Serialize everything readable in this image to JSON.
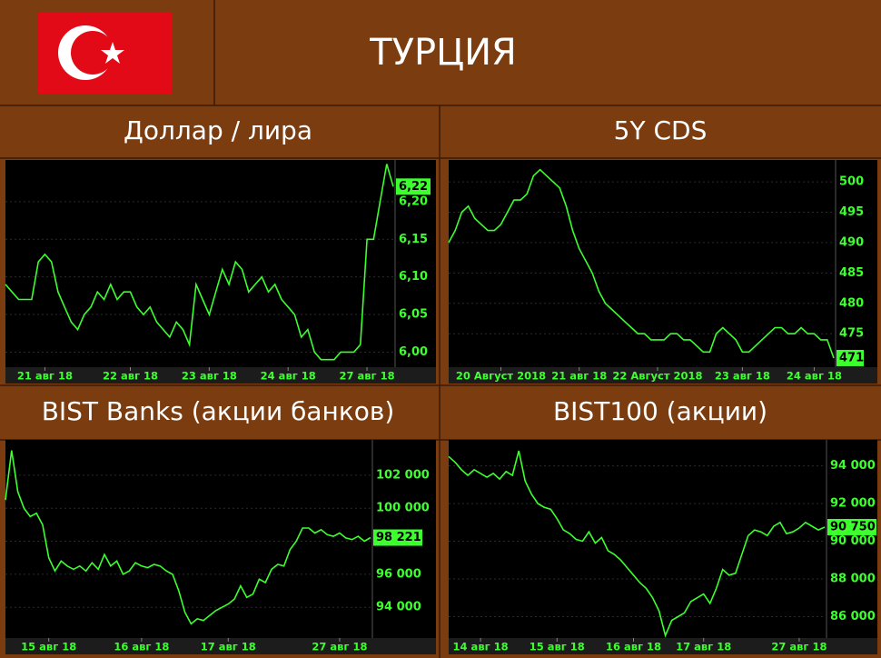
{
  "header": {
    "title": "ТУРЦИЯ"
  },
  "chart_data": [
    {
      "type": "line",
      "title": "Доллар / лира",
      "color": "#3cff2e",
      "grid": true,
      "categories": [
        null,
        null,
        null,
        null,
        null,
        null,
        "21 авг 18",
        null,
        null,
        null,
        null,
        null,
        null,
        null,
        null,
        null,
        null,
        null,
        null,
        "22 авг 18",
        null,
        null,
        null,
        null,
        null,
        null,
        null,
        null,
        null,
        null,
        null,
        "23 авг 18",
        null,
        null,
        null,
        null,
        null,
        null,
        null,
        null,
        null,
        null,
        null,
        "24 авг 18",
        null,
        null,
        null,
        null,
        null,
        null,
        null,
        null,
        null,
        null,
        null,
        "27 авг 18",
        null,
        null,
        null,
        null
      ],
      "values": [
        6.09,
        6.08,
        6.07,
        6.07,
        6.07,
        6.12,
        6.13,
        6.12,
        6.08,
        6.06,
        6.04,
        6.03,
        6.05,
        6.06,
        6.08,
        6.07,
        6.09,
        6.07,
        6.08,
        6.08,
        6.06,
        6.05,
        6.06,
        6.04,
        6.03,
        6.02,
        6.04,
        6.03,
        6.01,
        6.09,
        6.07,
        6.05,
        6.08,
        6.11,
        6.09,
        6.12,
        6.11,
        6.08,
        6.09,
        6.1,
        6.08,
        6.09,
        6.07,
        6.06,
        6.05,
        6.02,
        6.03,
        6.0,
        5.99,
        5.99,
        5.99,
        6.0,
        6.0,
        6.0,
        6.01,
        6.15,
        6.15,
        6.2,
        6.25,
        6.22
      ],
      "ylim": [
        5.98,
        6.253
      ],
      "yticks": [
        {
          "value": 6.0,
          "label": "6,00"
        },
        {
          "value": 6.05,
          "label": "6,05"
        },
        {
          "value": 6.1,
          "label": "6,10"
        },
        {
          "value": 6.15,
          "label": "6,15"
        },
        {
          "value": 6.2,
          "label": "6,20"
        }
      ],
      "last_label": {
        "value": 6.22,
        "label": "6,22"
      }
    },
    {
      "type": "line",
      "title": "5Y CDS",
      "color": "#3cff2e",
      "grid": true,
      "categories": [
        null,
        null,
        null,
        null,
        null,
        null,
        null,
        null,
        "20 Август 2018",
        null,
        null,
        null,
        null,
        null,
        null,
        null,
        null,
        null,
        null,
        null,
        "21 авг 18",
        null,
        null,
        null,
        null,
        null,
        null,
        null,
        null,
        null,
        null,
        null,
        "22 Август 2018",
        null,
        null,
        null,
        null,
        null,
        null,
        null,
        null,
        null,
        null,
        null,
        null,
        "23 авг 18",
        null,
        null,
        null,
        null,
        null,
        null,
        null,
        null,
        null,
        null,
        "24 авг 18",
        null,
        null,
        null
      ],
      "values": [
        490,
        492,
        495,
        496,
        494,
        493,
        492,
        492,
        493,
        495,
        497,
        497,
        498,
        501,
        502,
        501,
        500,
        499,
        496,
        492,
        489,
        487,
        485,
        482,
        480,
        479,
        478,
        477,
        476,
        475,
        475,
        474,
        474,
        474,
        475,
        475,
        474,
        474,
        473,
        472,
        472,
        475,
        476,
        475,
        474,
        472,
        472,
        473,
        474,
        475,
        476,
        476,
        475,
        475,
        476,
        475,
        475,
        474,
        474,
        471
      ],
      "ylim": [
        469.5,
        503.3
      ],
      "yticks": [
        475,
        480,
        485,
        490,
        495,
        500
      ],
      "last_label": {
        "value": 471,
        "label": "471"
      }
    },
    {
      "type": "line",
      "title": "BIST Banks (акции банков)",
      "color": "#3cff2e",
      "grid": true,
      "categories": [
        null,
        null,
        null,
        null,
        null,
        null,
        null,
        "15 авг 18",
        null,
        null,
        null,
        null,
        null,
        null,
        null,
        null,
        null,
        null,
        null,
        null,
        null,
        null,
        "16 авг 18",
        null,
        null,
        null,
        null,
        null,
        null,
        null,
        null,
        null,
        null,
        null,
        null,
        null,
        "17 авг 18",
        null,
        null,
        null,
        null,
        null,
        null,
        null,
        null,
        null,
        null,
        null,
        null,
        null,
        null,
        null,
        null,
        null,
        "27 авг 18",
        null,
        null,
        null,
        null,
        null
      ],
      "values": [
        100500,
        103500,
        101000,
        100000,
        99500,
        99700,
        99000,
        97000,
        96200,
        96800,
        96500,
        96300,
        96500,
        96200,
        96700,
        96300,
        97200,
        96500,
        96800,
        96000,
        96200,
        96700,
        96500,
        96400,
        96600,
        96500,
        96200,
        96000,
        95000,
        93700,
        93000,
        93300,
        93200,
        93500,
        93800,
        94000,
        94200,
        94500,
        95300,
        94600,
        94800,
        95700,
        95500,
        96300,
        96600,
        96500,
        97500,
        98000,
        98800,
        98800,
        98500,
        98700,
        98400,
        98300,
        98500,
        98200,
        98100,
        98300,
        98000,
        98221
      ],
      "ylim": [
        92140,
        104030
      ],
      "yticks": [
        {
          "value": 94000,
          "label": "94 000"
        },
        {
          "value": 96000,
          "label": "96 000"
        },
        {
          "value": 98000,
          "label": "98 000"
        },
        {
          "value": 100000,
          "label": "100 000"
        },
        {
          "value": 102000,
          "label": "102 000"
        }
      ],
      "last_label": {
        "value": 98221,
        "label": "98 221"
      }
    },
    {
      "type": "line",
      "title": "BIST100 (акции)",
      "color": "#3cff2e",
      "grid": true,
      "categories": [
        null,
        null,
        null,
        null,
        null,
        "14 авг 18",
        null,
        null,
        null,
        null,
        null,
        null,
        null,
        null,
        null,
        null,
        null,
        "15 авг 18",
        null,
        null,
        null,
        null,
        null,
        null,
        null,
        null,
        null,
        null,
        null,
        "16 авг 18",
        null,
        null,
        null,
        null,
        null,
        null,
        null,
        null,
        null,
        null,
        "17 авг 18",
        null,
        null,
        null,
        null,
        null,
        null,
        null,
        null,
        null,
        null,
        null,
        null,
        null,
        null,
        "27 авг 18",
        null,
        null,
        null,
        null
      ],
      "values": [
        94500,
        94200,
        93800,
        93500,
        93800,
        93600,
        93400,
        93600,
        93300,
        93700,
        93500,
        94800,
        93200,
        92500,
        92000,
        91800,
        91700,
        91200,
        90600,
        90400,
        90100,
        90000,
        90500,
        89900,
        90200,
        89500,
        89300,
        89000,
        88600,
        88200,
        87800,
        87500,
        87000,
        86300,
        85000,
        85800,
        86000,
        86200,
        86800,
        87000,
        87200,
        86700,
        87500,
        88500,
        88200,
        88300,
        89300,
        90300,
        90600,
        90500,
        90300,
        90800,
        91000,
        90400,
        90500,
        90700,
        91000,
        90800,
        90600,
        90750
      ],
      "ylim": [
        84864,
        95284
      ],
      "yticks": [
        {
          "value": 86000,
          "label": "86 000"
        },
        {
          "value": 88000,
          "label": "88 000"
        },
        {
          "value": 90000,
          "label": "90 000"
        },
        {
          "value": 92000,
          "label": "92 000"
        },
        {
          "value": 94000,
          "label": "94 000"
        }
      ],
      "last_label": {
        "value": 90750,
        "label": "90 750"
      }
    }
  ]
}
